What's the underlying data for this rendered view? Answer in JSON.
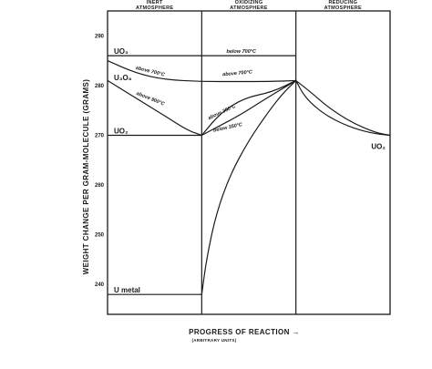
{
  "chart_data": {
    "type": "line",
    "title": "",
    "ylabel": "WEIGHT CHANGE PER GRAM-MOLECULE (GRAMS)",
    "xlabel": "PROGRESS OF REACTION →",
    "xlabel_sub": "(ARBITRARY UNITS)",
    "x_arrow": "→",
    "ylim": [
      234,
      295
    ],
    "xlim": [
      0,
      3
    ],
    "y_ticks": [
      240,
      250,
      260,
      270,
      280,
      290
    ],
    "y_tick_labels": [
      "240",
      "250",
      "260",
      "270",
      "280",
      "290"
    ],
    "grid": false,
    "zones": [
      {
        "label": "INERT ATMOSPHERE",
        "x_start": 0,
        "x_end": 1
      },
      {
        "label": "OXIDIZING ATMOSPHERE",
        "x_start": 1,
        "x_end": 2
      },
      {
        "label": "REDUCING ATMOSPHERE",
        "x_start": 2,
        "x_end": 3
      }
    ],
    "horizontal_levels": [
      {
        "label": "UO₃",
        "y": 286
      },
      {
        "label": "U₃O₈",
        "y": 280.7
      },
      {
        "label": "UO₂",
        "y": 270
      },
      {
        "label": "U metal",
        "y": 238
      }
    ],
    "series": [
      {
        "points": [
          [
            0,
            286
          ],
          [
            2,
            286
          ]
        ]
      },
      {
        "points": [
          [
            0,
            285
          ],
          [
            0.3,
            282.5
          ],
          [
            0.6,
            281.2
          ],
          [
            1,
            280.8
          ],
          [
            1.4,
            280.8
          ],
          [
            1.7,
            280.8
          ],
          [
            2,
            281
          ]
        ]
      },
      {
        "points": [
          [
            0,
            281
          ],
          [
            0.3,
            277.5
          ],
          [
            0.6,
            274
          ],
          [
            0.85,
            271
          ],
          [
            1,
            270
          ]
        ]
      },
      {
        "points": [
          [
            0,
            270
          ],
          [
            1,
            270
          ]
        ]
      },
      {
        "points": [
          [
            1,
            270
          ],
          [
            1.15,
            271.5
          ],
          [
            1.4,
            274
          ],
          [
            1.65,
            277
          ],
          [
            1.85,
            279.3
          ],
          [
            2,
            281
          ]
        ]
      },
      {
        "points": [
          [
            1,
            270
          ],
          [
            1.2,
            274.5
          ],
          [
            1.45,
            277.5
          ],
          [
            1.75,
            278.7
          ],
          [
            2,
            281
          ]
        ]
      },
      {
        "points": [
          [
            1,
            238
          ],
          [
            1.05,
            245
          ],
          [
            1.15,
            254
          ],
          [
            1.3,
            262
          ],
          [
            1.5,
            269
          ],
          [
            1.7,
            274.5
          ],
          [
            1.85,
            278.2
          ],
          [
            2,
            281
          ]
        ]
      },
      {
        "points": [
          [
            0,
            238
          ],
          [
            1,
            238
          ]
        ]
      },
      {
        "points": [
          [
            2,
            281
          ],
          [
            2.15,
            278.8
          ],
          [
            2.35,
            275.5
          ],
          [
            2.6,
            272.5
          ],
          [
            2.85,
            270.5
          ],
          [
            3,
            270
          ]
        ]
      },
      {
        "points": [
          [
            2,
            281
          ],
          [
            2.1,
            277.5
          ],
          [
            2.3,
            274.2
          ],
          [
            2.55,
            271.8
          ],
          [
            2.8,
            270.4
          ],
          [
            3,
            270
          ]
        ]
      }
    ],
    "annotations": [
      {
        "text": "below 700°C",
        "x": 1.42,
        "y": 286.6,
        "rotate": 0
      },
      {
        "text": "above 700°C",
        "x": 1.38,
        "y": 282.2,
        "rotate": -5
      },
      {
        "text": "above 700°C",
        "x": 0.45,
        "y": 282.6,
        "rotate": 14
      },
      {
        "text": "above 900°C",
        "x": 0.45,
        "y": 277.1,
        "rotate": 22
      },
      {
        "text": "above 350°C",
        "x": 1.22,
        "y": 274.4,
        "rotate": -25
      },
      {
        "text": "below 350°C",
        "x": 1.28,
        "y": 271.3,
        "rotate": -12
      }
    ],
    "end_labels": [
      {
        "text": "UO₂",
        "x": 2.8,
        "y": 268.5
      }
    ]
  }
}
